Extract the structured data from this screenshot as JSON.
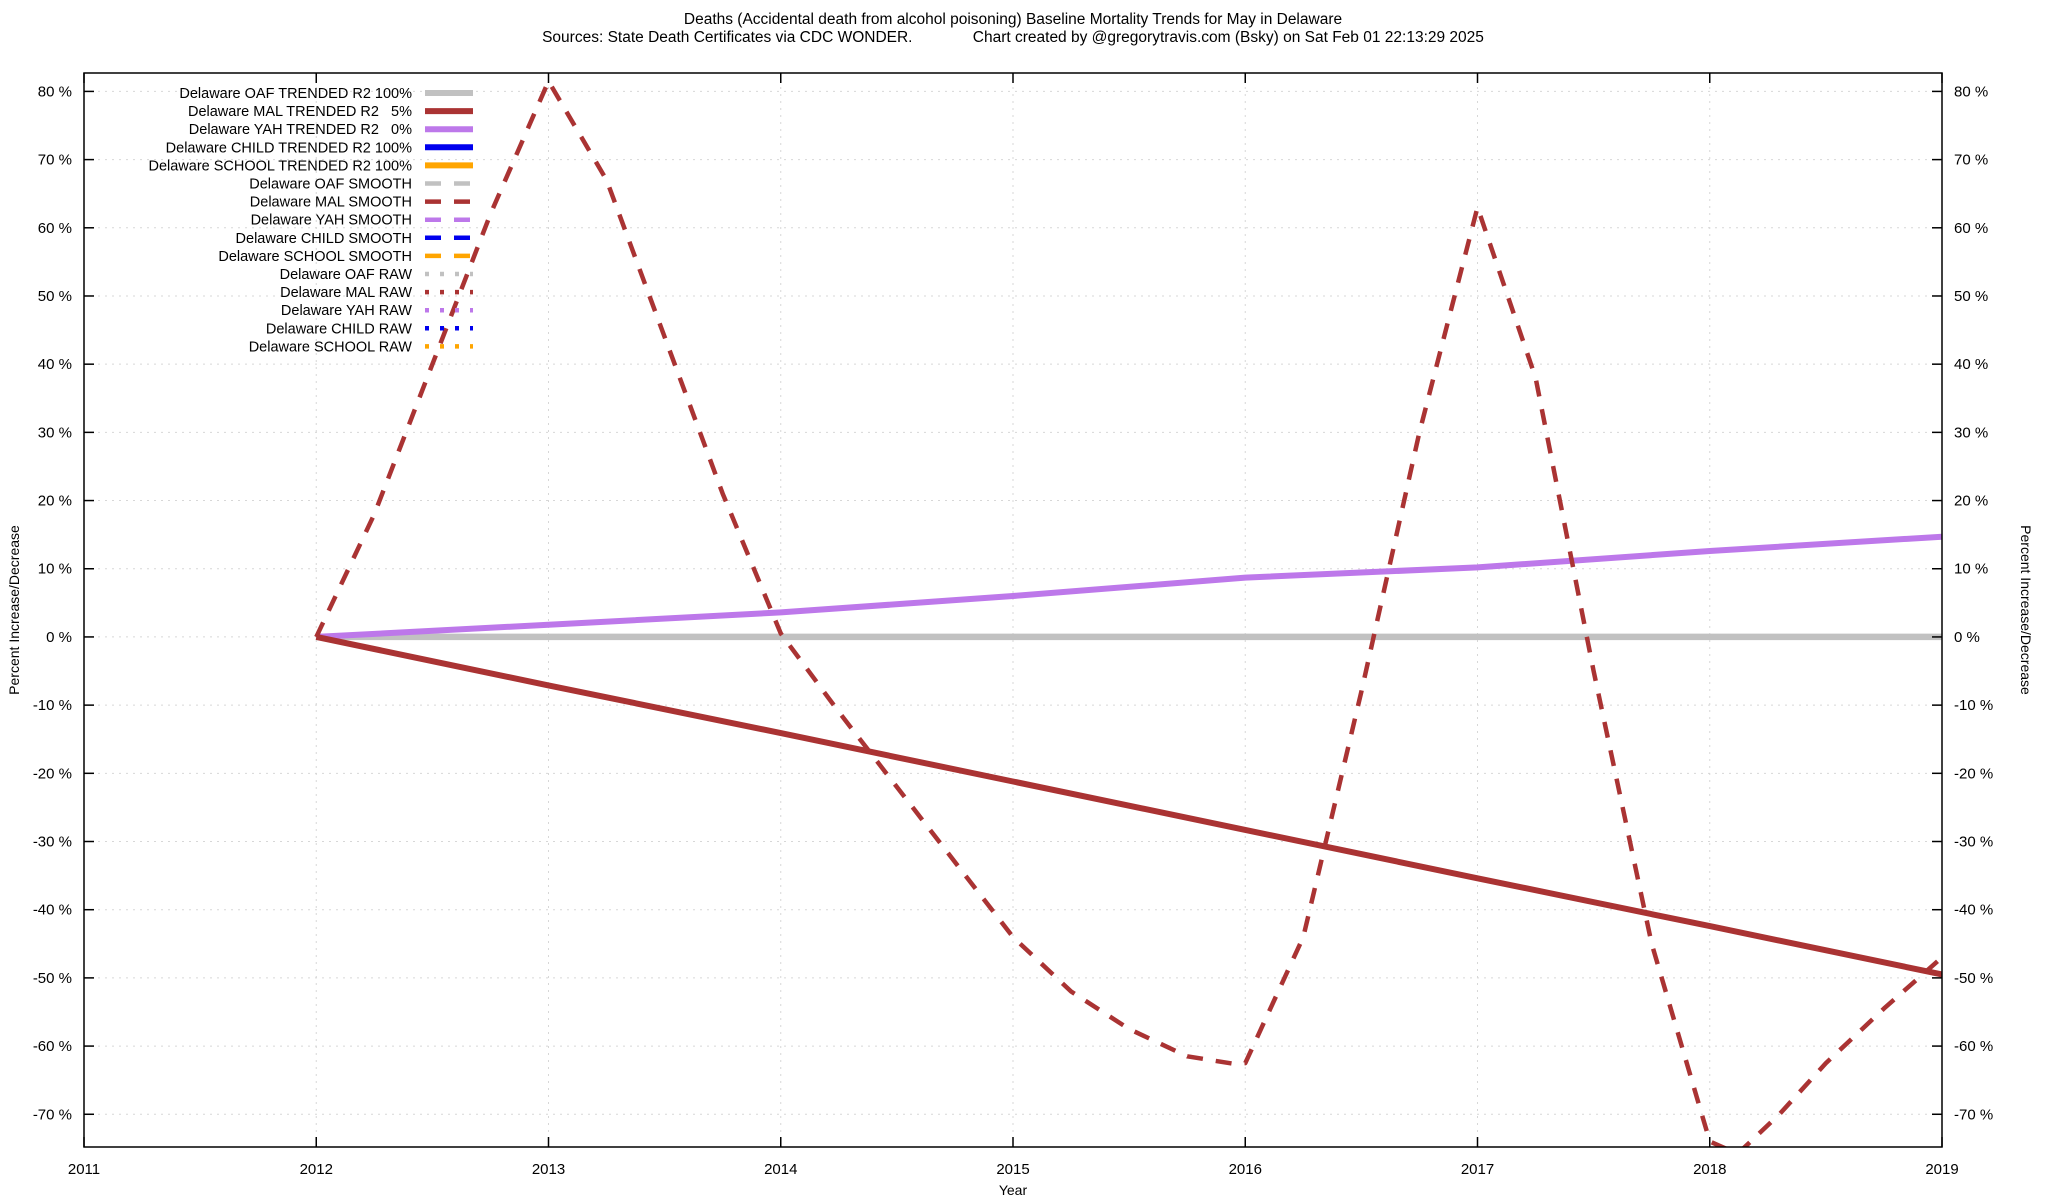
{
  "title": {
    "line1": "Deaths (Accidental death from alcohol poisoning)  Baseline Mortality Trends for May in Delaware",
    "line2_sources": "Sources: State Death Certificates via CDC WONDER.",
    "line2_credit": "Chart created by @gregorytravis.com (Bsky) on Sat Feb 01 22:13:29 2025"
  },
  "axes": {
    "x_label": "Year",
    "y_label_left": "Percent Increase/Decrease",
    "y_label_right": "Percent Increase/Decrease",
    "y_tick_suffix": " %"
  },
  "legend": {
    "position": "top-left",
    "entries": [
      {
        "label": "Delaware OAF TRENDED R2 100%",
        "color": "#c1c1c1",
        "style": "solid"
      },
      {
        "label": "Delaware MAL TRENDED R2   5%",
        "color": "#aa3333",
        "style": "solid"
      },
      {
        "label": "Delaware YAH TRENDED R2   0%",
        "color": "#bd78ea",
        "style": "solid"
      },
      {
        "label": "Delaware CHILD TRENDED R2 100%",
        "color": "#0000ee",
        "style": "solid"
      },
      {
        "label": "Delaware SCHOOL TRENDED R2 100%",
        "color": "#ffa500",
        "style": "solid"
      },
      {
        "label": "Delaware OAF SMOOTH",
        "color": "#c1c1c1",
        "style": "dashed"
      },
      {
        "label": "Delaware MAL SMOOTH",
        "color": "#aa3333",
        "style": "dashed"
      },
      {
        "label": "Delaware YAH SMOOTH",
        "color": "#bd78ea",
        "style": "dashed"
      },
      {
        "label": "Delaware CHILD SMOOTH",
        "color": "#0000ee",
        "style": "dashed"
      },
      {
        "label": "Delaware SCHOOL SMOOTH",
        "color": "#ffa500",
        "style": "dashed"
      },
      {
        "label": "Delaware OAF RAW",
        "color": "#c1c1c1",
        "style": "dotted"
      },
      {
        "label": "Delaware MAL RAW",
        "color": "#aa3333",
        "style": "dotted"
      },
      {
        "label": "Delaware YAH RAW",
        "color": "#bd78ea",
        "style": "dotted"
      },
      {
        "label": "Delaware CHILD RAW",
        "color": "#0000ee",
        "style": "dotted"
      },
      {
        "label": "Delaware SCHOOL RAW",
        "color": "#ffa500",
        "style": "dotted"
      }
    ]
  },
  "chart_data": {
    "type": "line",
    "xlabel": "Year",
    "ylabel": "Percent Increase/Decrease",
    "xlim": [
      2011,
      2019
    ],
    "ylim": [
      -74.8,
      82.7
    ],
    "x_ticks": [
      2011,
      2012,
      2013,
      2014,
      2015,
      2016,
      2017,
      2018,
      2019
    ],
    "y_ticks": [
      -70,
      -60,
      -50,
      -40,
      -30,
      -20,
      -10,
      0,
      10,
      20,
      30,
      40,
      50,
      60,
      70,
      80
    ],
    "grid": true,
    "series": [
      {
        "name": "Delaware OAF TRENDED R2 100%",
        "color": "#c1c1c1",
        "style": "solid",
        "width": 6.5,
        "x": [
          2012,
          2019
        ],
        "values": [
          0,
          0
        ]
      },
      {
        "name": "Delaware YAH TRENDED R2   0%",
        "color": "#bd78ea",
        "style": "solid",
        "width": 6,
        "x": [
          2012,
          2013,
          2014,
          2015,
          2016,
          2017,
          2018,
          2019
        ],
        "values": [
          0,
          1.8,
          3.6,
          6.0,
          8.7,
          10.2,
          12.6,
          14.7
        ]
      },
      {
        "name": "Delaware MAL TRENDED R2   5%",
        "color": "#aa3333",
        "style": "solid",
        "width": 6,
        "x": [
          2012,
          2013,
          2014,
          2015,
          2016,
          2017,
          2018,
          2019
        ],
        "values": [
          0,
          -7.1,
          -14.1,
          -21.2,
          -28.3,
          -35.4,
          -42.4,
          -49.5
        ]
      },
      {
        "name": "Delaware MAL SMOOTH",
        "color": "#aa3333",
        "style": "dashed",
        "width": 4.5,
        "x": [
          2012,
          2013,
          2014,
          2015,
          2016,
          2017,
          2018,
          2019
        ],
        "values": [
          0,
          81.5,
          0,
          -44,
          -62.5,
          63,
          -74,
          -47
        ],
        "render_samples": {
          "x": [
            2012,
            2012.25,
            2012.5,
            2012.75,
            2013,
            2013.25,
            2013.5,
            2013.75,
            2014,
            2014.25,
            2014.5,
            2014.75,
            2015,
            2015.25,
            2015.5,
            2015.75,
            2015.95,
            2016,
            2016.25,
            2016.5,
            2016.75,
            2017,
            2017.25,
            2017.5,
            2017.75,
            2018,
            2018.12,
            2018.3,
            2018.5,
            2018.75,
            2019
          ],
          "v": [
            0,
            18,
            40,
            62,
            81.5,
            67,
            44,
            21,
            0.5,
            -11,
            -22,
            -33,
            -44,
            -52,
            -57.5,
            -61.5,
            -62.6,
            -62.5,
            -44,
            -8,
            30,
            63,
            38,
            -5,
            -45,
            -74,
            -75.8,
            -70,
            -62.5,
            -54.5,
            -47
          ]
        }
      }
    ]
  }
}
